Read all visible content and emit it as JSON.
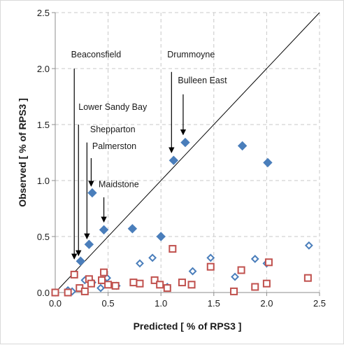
{
  "chart_data": {
    "type": "scatter",
    "xlabel": "Predicted [ % of RPS3 ]",
    "ylabel": "Observed [ % of RPS3 ]",
    "xlim": [
      0,
      2.5
    ],
    "ylim": [
      0,
      2.5
    ],
    "x_ticks": [
      "0.0",
      "0.5",
      "1.0",
      "1.5",
      "2.0",
      "2.5"
    ],
    "y_ticks": [
      "0.0",
      "0.5",
      "1.0",
      "1.5",
      "2.0",
      "2.5"
    ],
    "grid": true,
    "reference_line": {
      "from": [
        0,
        0
      ],
      "to": [
        2.5,
        2.5
      ]
    },
    "colors": {
      "blue": "#4a7ebb",
      "red": "#c0504d",
      "grid": "#c8c8c8",
      "axis": "#8c8c8c"
    },
    "series": [
      {
        "marker": "filled-diamond",
        "color": "#4a7ebb",
        "points": [
          [
            0.24,
            0.28
          ],
          [
            0.32,
            0.43
          ],
          [
            0.35,
            0.89
          ],
          [
            0.46,
            0.56
          ],
          [
            0.73,
            0.57
          ],
          [
            1.0,
            0.5
          ],
          [
            1.12,
            1.18
          ],
          [
            1.23,
            1.34
          ],
          [
            1.77,
            1.31
          ],
          [
            2.01,
            1.16
          ]
        ]
      },
      {
        "marker": "hollow-diamond",
        "color": "#4a7ebb",
        "points": [
          [
            0.0,
            0.0
          ],
          [
            0.12,
            0.02
          ],
          [
            0.16,
            0.01
          ],
          [
            0.28,
            0.11
          ],
          [
            0.35,
            0.09
          ],
          [
            0.43,
            0.04
          ],
          [
            0.45,
            0.11
          ],
          [
            0.49,
            0.13
          ],
          [
            0.58,
            0.06
          ],
          [
            0.8,
            0.26
          ],
          [
            0.92,
            0.31
          ],
          [
            1.06,
            0.05
          ],
          [
            1.3,
            0.19
          ],
          [
            1.47,
            0.31
          ],
          [
            1.7,
            0.14
          ],
          [
            1.89,
            0.3
          ],
          [
            2.0,
            0.26
          ],
          [
            2.4,
            0.42
          ]
        ]
      },
      {
        "marker": "hollow-square",
        "color": "#c0504d",
        "points": [
          [
            0.0,
            0.0
          ],
          [
            0.12,
            0.0
          ],
          [
            0.18,
            0.16
          ],
          [
            0.23,
            0.04
          ],
          [
            0.28,
            0.01
          ],
          [
            0.32,
            0.12
          ],
          [
            0.34,
            0.08
          ],
          [
            0.44,
            0.11
          ],
          [
            0.46,
            0.18
          ],
          [
            0.5,
            0.07
          ],
          [
            0.57,
            0.06
          ],
          [
            0.74,
            0.09
          ],
          [
            0.8,
            0.08
          ],
          [
            0.94,
            0.11
          ],
          [
            0.99,
            0.07
          ],
          [
            1.06,
            0.04
          ],
          [
            1.11,
            0.39
          ],
          [
            1.2,
            0.09
          ],
          [
            1.29,
            0.07
          ],
          [
            1.47,
            0.23
          ],
          [
            1.69,
            0.01
          ],
          [
            1.76,
            0.2
          ],
          [
            1.89,
            0.05
          ],
          [
            2.0,
            0.08
          ],
          [
            2.02,
            0.27
          ],
          [
            2.39,
            0.13
          ]
        ]
      }
    ],
    "annotations": [
      {
        "text": "Beaconsfield",
        "label_at": [
          0.15,
          2.1
        ],
        "arrow_from": [
          0.18,
          2.0
        ],
        "arrow_to": [
          0.18,
          0.3
        ]
      },
      {
        "text": "Lower Sandy Bay",
        "label_at": [
          0.22,
          1.63
        ],
        "arrow_from": [
          0.22,
          1.5
        ],
        "arrow_to": [
          0.22,
          0.33
        ]
      },
      {
        "text": "Shepparton",
        "label_at": [
          0.33,
          1.43
        ],
        "arrow_from": [
          0.3,
          1.34
        ],
        "arrow_to": [
          0.3,
          0.48
        ]
      },
      {
        "text": "Palmerston",
        "label_at": [
          0.35,
          1.28
        ],
        "arrow_from": [
          0.34,
          1.2
        ],
        "arrow_to": [
          0.34,
          0.95
        ]
      },
      {
        "text": "Maidstone",
        "label_at": [
          0.41,
          0.94
        ],
        "arrow_from": [
          0.46,
          0.85
        ],
        "arrow_to": [
          0.46,
          0.63
        ]
      },
      {
        "text": "Drummoyne",
        "label_at": [
          1.06,
          2.1
        ],
        "arrow_from": [
          1.1,
          1.97
        ],
        "arrow_to": [
          1.1,
          1.25
        ]
      },
      {
        "text": "Bulleen East",
        "label_at": [
          1.16,
          1.87
        ],
        "arrow_from": [
          1.21,
          1.77
        ],
        "arrow_to": [
          1.21,
          1.41
        ]
      }
    ]
  }
}
